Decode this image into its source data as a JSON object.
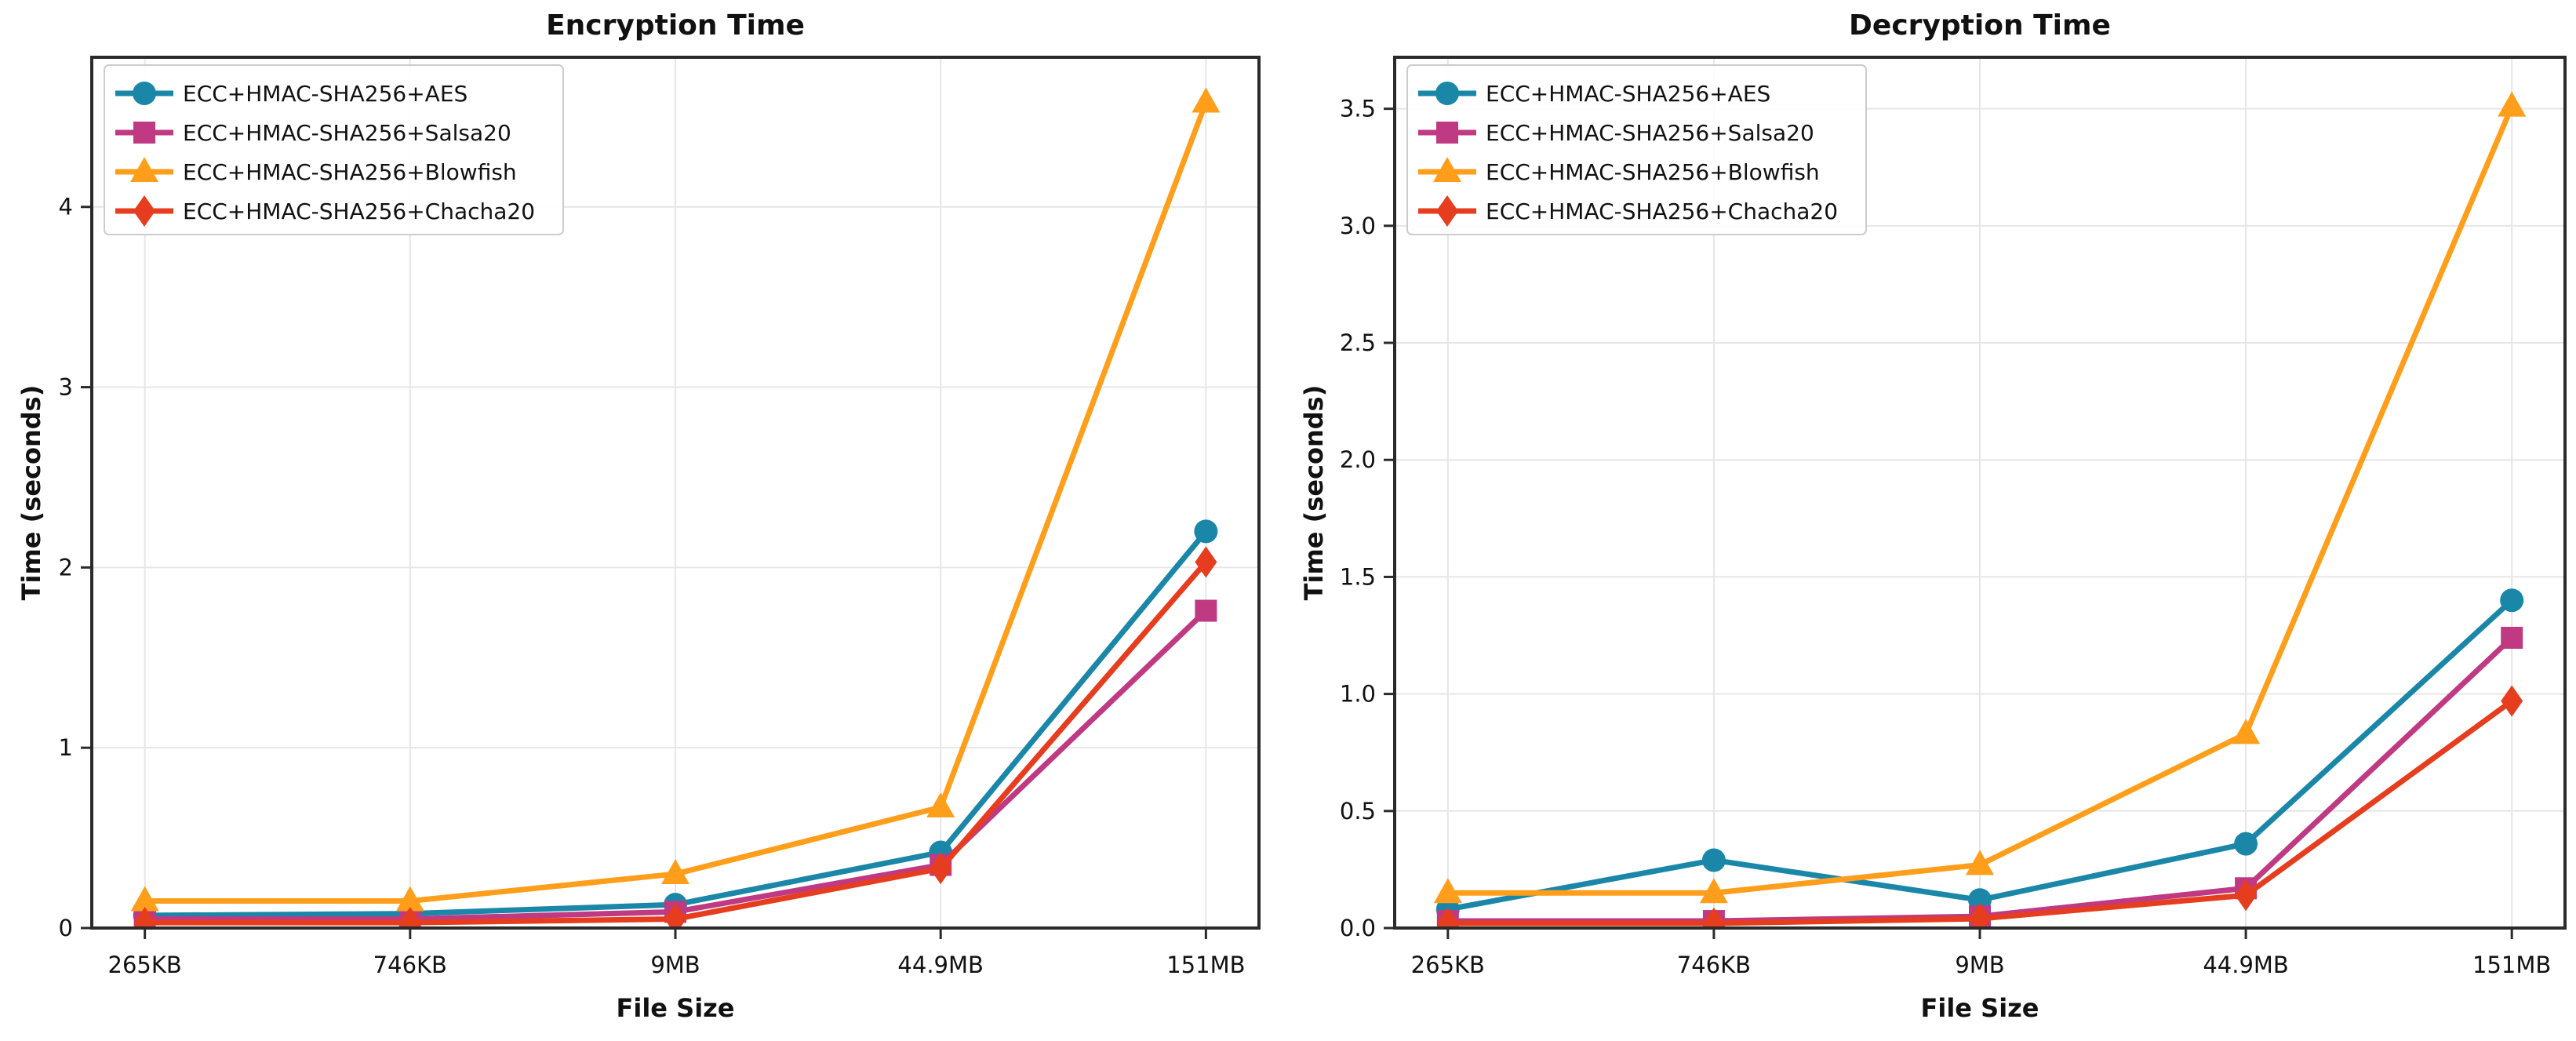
{
  "figure": {
    "background": "#ffffff",
    "spine_color": "#2a2a2a",
    "grid_color": "#e6e6e6",
    "legend_border_color": "#cccccc"
  },
  "chart_data": [
    {
      "type": "line",
      "name": "encryption-time",
      "title": "Encryption Time",
      "xlabel": "File Size",
      "ylabel": "Time (seconds)",
      "categories": [
        "265KB",
        "746KB",
        "9MB",
        "44.9MB",
        "151MB"
      ],
      "yticks": [
        0,
        1,
        2,
        3,
        4
      ],
      "ytick_labels": [
        "0",
        "1",
        "2",
        "3",
        "4"
      ],
      "ylim": [
        0,
        4.83
      ],
      "grid": true,
      "legend_position": "upper left",
      "series": [
        {
          "name": "ECC+HMAC-SHA256+AES",
          "color": "#1b87a8",
          "marker": "circle",
          "values": [
            0.07,
            0.08,
            0.13,
            0.42,
            2.2
          ]
        },
        {
          "name": "ECC+HMAC-SHA256+Salsa20",
          "color": "#bf3a82",
          "marker": "square",
          "values": [
            0.05,
            0.05,
            0.09,
            0.35,
            1.76
          ]
        },
        {
          "name": "ECC+HMAC-SHA256+Blowfish",
          "color": "#ff9e1b",
          "marker": "triangle",
          "values": [
            0.15,
            0.15,
            0.3,
            0.67,
            4.58
          ]
        },
        {
          "name": "ECC+HMAC-SHA256+Chacha20",
          "color": "#e63d1f",
          "marker": "diamond",
          "values": [
            0.03,
            0.03,
            0.05,
            0.33,
            2.03
          ]
        }
      ]
    },
    {
      "type": "line",
      "name": "decryption-time",
      "title": "Decryption Time",
      "xlabel": "File Size",
      "ylabel": "Time (seconds)",
      "categories": [
        "265KB",
        "746KB",
        "9MB",
        "44.9MB",
        "151MB"
      ],
      "yticks": [
        0,
        0.5,
        1.0,
        1.5,
        2.0,
        2.5,
        3.0,
        3.5
      ],
      "ytick_labels": [
        "0.0",
        "0.5",
        "1.0",
        "1.5",
        "2.0",
        "2.5",
        "3.0",
        "3.5"
      ],
      "ylim": [
        0,
        3.72
      ],
      "grid": true,
      "legend_position": "upper left",
      "series": [
        {
          "name": "ECC+HMAC-SHA256+AES",
          "color": "#1b87a8",
          "marker": "circle",
          "values": [
            0.08,
            0.29,
            0.12,
            0.36,
            1.4
          ]
        },
        {
          "name": "ECC+HMAC-SHA256+Salsa20",
          "color": "#bf3a82",
          "marker": "square",
          "values": [
            0.03,
            0.03,
            0.05,
            0.17,
            1.24
          ]
        },
        {
          "name": "ECC+HMAC-SHA256+Blowfish",
          "color": "#ff9e1b",
          "marker": "triangle",
          "values": [
            0.15,
            0.15,
            0.27,
            0.83,
            3.51
          ]
        },
        {
          "name": "ECC+HMAC-SHA256+Chacha20",
          "color": "#e63d1f",
          "marker": "diamond",
          "values": [
            0.02,
            0.02,
            0.04,
            0.14,
            0.97
          ]
        }
      ]
    }
  ]
}
